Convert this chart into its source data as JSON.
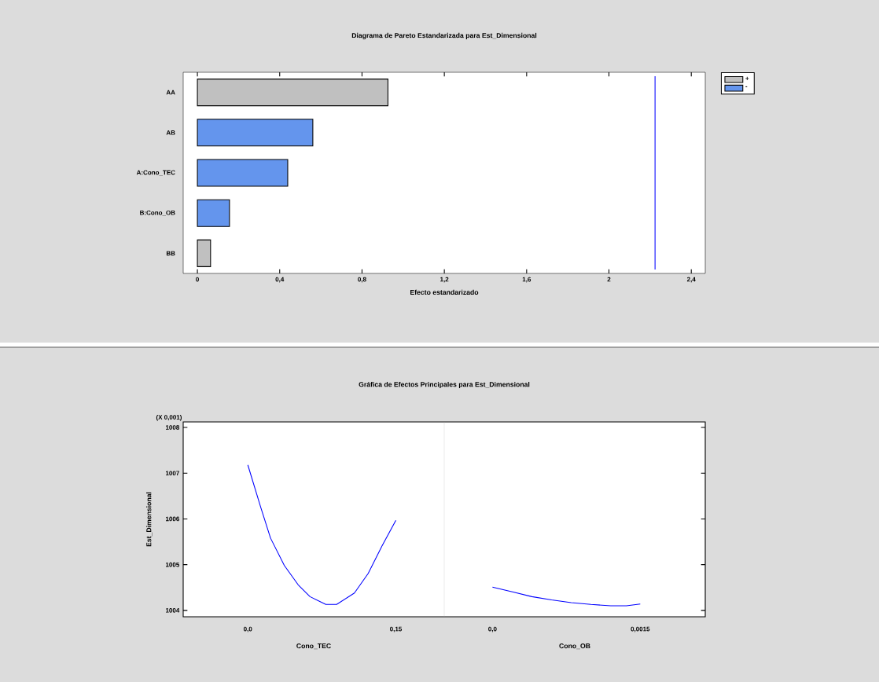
{
  "chart_data": [
    {
      "type": "bar",
      "orientation": "horizontal",
      "title": "Diagrama de Pareto Estandarizada para Est_Dimensional",
      "xlabel": "Efecto estandarizado",
      "categories": [
        "AA",
        "AB",
        "A:Cono_TEC",
        "B:Cono_OB",
        "BB"
      ],
      "series": [
        {
          "name": "+",
          "color": "#c0c0c0",
          "values": [
            0.926,
            null,
            null,
            null,
            0.064
          ]
        },
        {
          "name": "-",
          "color": "#6495ed",
          "values": [
            null,
            0.561,
            0.439,
            0.156,
            null
          ]
        }
      ],
      "xlim": [
        -0.069,
        2.468
      ],
      "xticks": [
        0,
        {
          "value": 0.4,
          "label": "0,4"
        },
        {
          "value": 0.8,
          "label": "0,8"
        },
        {
          "value": 1.2,
          "label": "1,2"
        },
        {
          "value": 1.6,
          "label": "1,6"
        },
        2,
        {
          "value": 2.4,
          "label": "2,4"
        }
      ],
      "ref_lines": [
        {
          "axis": "x",
          "value": 2.224,
          "color": "#0000ff"
        }
      ],
      "legend": "top right"
    },
    {
      "type": "line",
      "title": "Gráfica de Efectos Principales para Est_Dimensional",
      "xlabel": "Cono_TEC",
      "ylabel": "Est_Dimensional",
      "annotations": [
        "(X 0,001)"
      ],
      "series": [
        {
          "color": "#0000ff",
          "x": [
            0,
            0.013,
            0.023,
            0.037,
            0.051,
            0.063,
            0.079,
            0.09,
            0.108,
            0.122,
            0.136,
            0.15
          ],
          "values": [
            1007.18,
            1006.26,
            1005.58,
            1004.98,
            1004.56,
            1004.3,
            1004.13,
            1004.13,
            1004.38,
            1004.81,
            1005.41,
            1005.97
          ]
        }
      ],
      "xlim": [
        -0.0655,
        0.199
      ],
      "xticks": [
        {
          "value": 0,
          "label": "0,0"
        },
        {
          "value": 0.15,
          "label": "0,15"
        }
      ],
      "ylim": [
        1003.86,
        1008.12
      ],
      "yticks": [
        1004,
        1005,
        1006,
        1007,
        1008
      ]
    },
    {
      "type": "line",
      "xlabel": "Cono_OB",
      "tick_labels": "x",
      "series": [
        {
          "color": "#0000ff",
          "x": [
            0,
            0.00021,
            0.0004,
            0.0006,
            0.0008,
            0.001,
            0.0012,
            0.00136,
            0.0015
          ],
          "values": [
            1004.51,
            1004.4,
            1004.3,
            1004.23,
            1004.17,
            1004.13,
            1004.1,
            1004.1,
            1004.14
          ]
        }
      ],
      "xlim": [
        -0.00049,
        0.00216
      ],
      "xticks": [
        {
          "value": 0,
          "label": "0,0"
        },
        {
          "value": 0.0015,
          "label": "0,0015"
        }
      ],
      "ylim": [
        1003.86,
        1008.12
      ],
      "yticks": [
        1004,
        1005,
        1006,
        1007,
        1008
      ]
    }
  ]
}
